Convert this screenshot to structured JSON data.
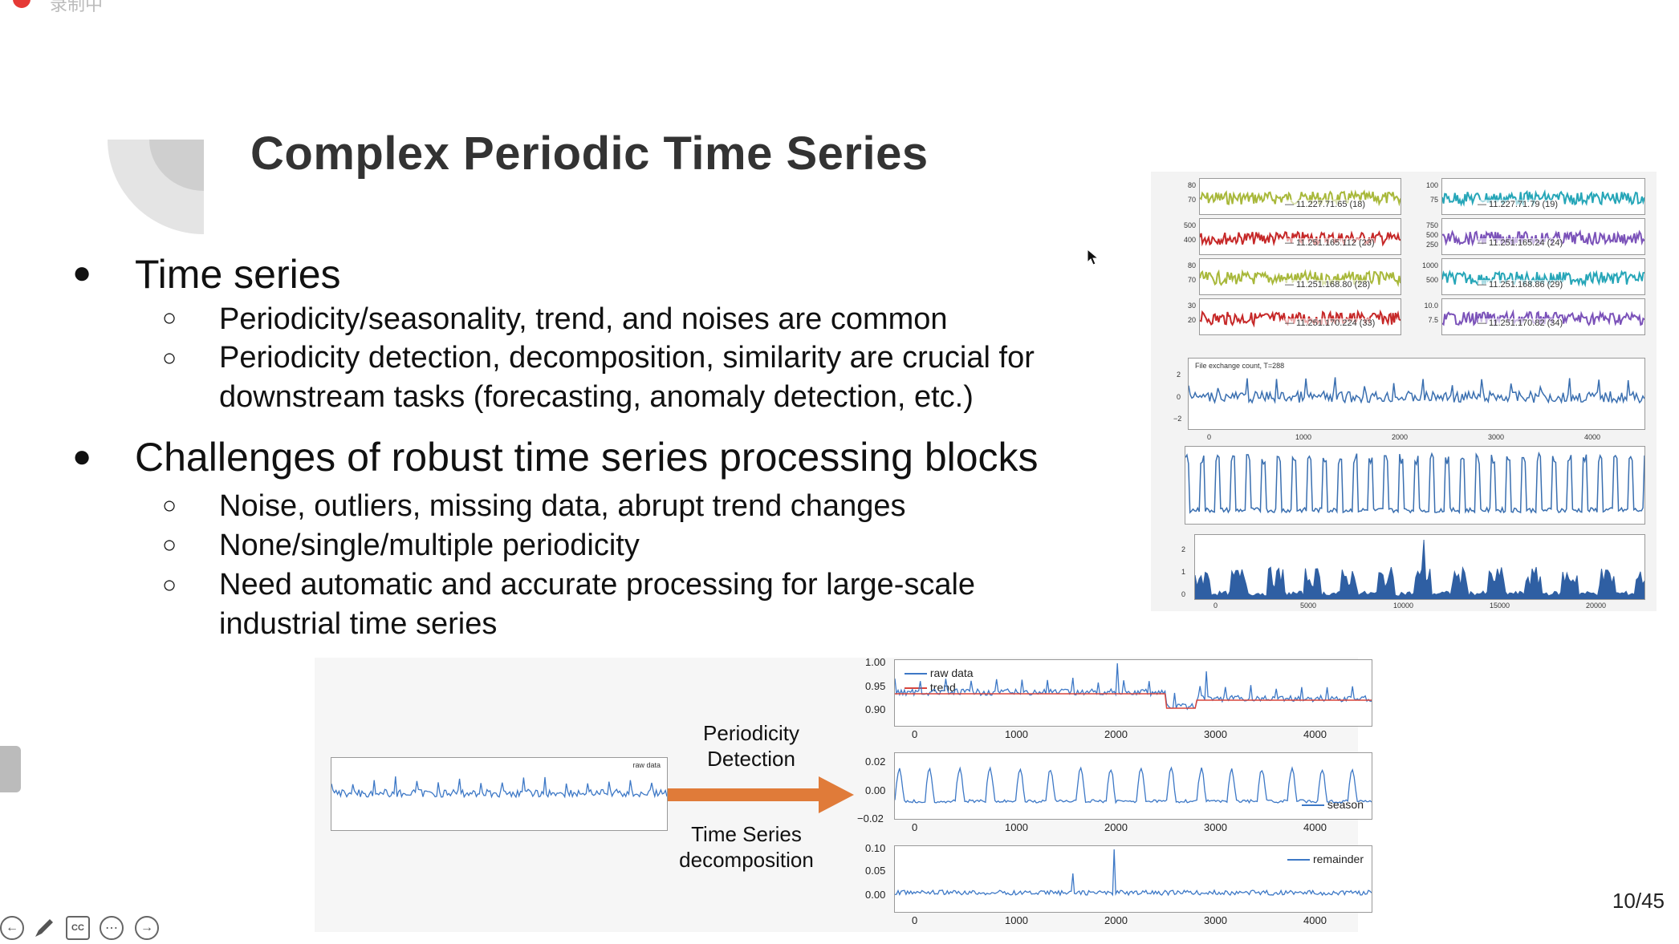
{
  "recording": {
    "label": "录制中"
  },
  "slide": {
    "title": "Complex Periodic Time Series",
    "bullets": [
      {
        "text": "Time series",
        "subs": [
          "Periodicity/seasonality, trend, and noises are common",
          "Periodicity detection, decomposition, similarity are crucial for",
          "downstream tasks (forecasting, anomaly detection, etc.)"
        ]
      },
      {
        "text": "Challenges of robust time series processing blocks",
        "subs": [
          "Noise, outliers, missing data, abrupt trend changes",
          "None/single/multiple periodicity",
          "Need automatic and accurate processing for large-scale",
          "industrial time series"
        ]
      }
    ],
    "page_indicator": {
      "current": "10",
      "total": "/45"
    }
  },
  "diagram": {
    "arrow_top_label_1": "Periodicity",
    "arrow_top_label_2": "Detection",
    "arrow_bottom_label_1": "Time Series",
    "arrow_bottom_label_2": "decomposition",
    "small_legend": "raw data",
    "decomp": {
      "raw": {
        "legend_1": "raw data",
        "legend_2": "trend",
        "yticks": [
          "1.00",
          "0.95",
          "0.90"
        ]
      },
      "season": {
        "legend": "season",
        "yticks": [
          "0.02",
          "0.00",
          "−0.02"
        ]
      },
      "remainder": {
        "legend": "remainder",
        "yticks": [
          "0.10",
          "0.05",
          "0.00"
        ]
      },
      "xticks": [
        "0",
        "1000",
        "2000",
        "3000",
        "4000"
      ]
    }
  },
  "grid_panels": {
    "left": [
      {
        "legend": "11.227.71.65 (18)",
        "yticks": [
          "80",
          "70"
        ],
        "color": "#a8b83a"
      },
      {
        "legend": "11.251.165.112 (23)",
        "yticks": [
          "500",
          "400"
        ],
        "color": "#c62828"
      },
      {
        "legend": "11.251.168.80 (28)",
        "yticks": [
          "80",
          "70"
        ],
        "color": "#a8b83a"
      },
      {
        "legend": "11.251.170.224 (33)",
        "yticks": [
          "30",
          "20"
        ],
        "color": "#c62828"
      }
    ],
    "right": [
      {
        "legend": "11.227.71.79 (19)",
        "yticks": [
          "100",
          "75"
        ],
        "color": "#26a6b8"
      },
      {
        "legend": "11.251.165.24 (24)",
        "yticks": [
          "750",
          "500",
          "250"
        ],
        "color": "#7b52b9"
      },
      {
        "legend": "11.251.168.86 (29)",
        "yticks": [
          "1000",
          "500"
        ],
        "color": "#26a6b8"
      },
      {
        "legend": "11.251.170.82 (34)",
        "yticks": [
          "10.0",
          "7.5"
        ],
        "color": "#7b52b9"
      }
    ],
    "file_exchange": {
      "legend": "File exchange count, T=288",
      "yticks": [
        "2",
        "0",
        "−2"
      ],
      "xticks": [
        "0",
        "1000",
        "2000",
        "3000",
        "4000"
      ]
    },
    "bottom": {
      "yticks": [
        "2",
        "1",
        "0"
      ],
      "xticks": [
        "0",
        "5000",
        "10000",
        "15000",
        "20000"
      ]
    }
  },
  "colors": {
    "arrow": "#e07b39",
    "line_blue": "#3a6fb0",
    "raw_blue": "#3d78c6",
    "trend_red": "#d9453c"
  },
  "toolbar": {
    "icons": [
      "back-icon",
      "pen-icon",
      "cc-icon",
      "more-icon",
      "forward-icon"
    ],
    "cc_label": "CC"
  }
}
